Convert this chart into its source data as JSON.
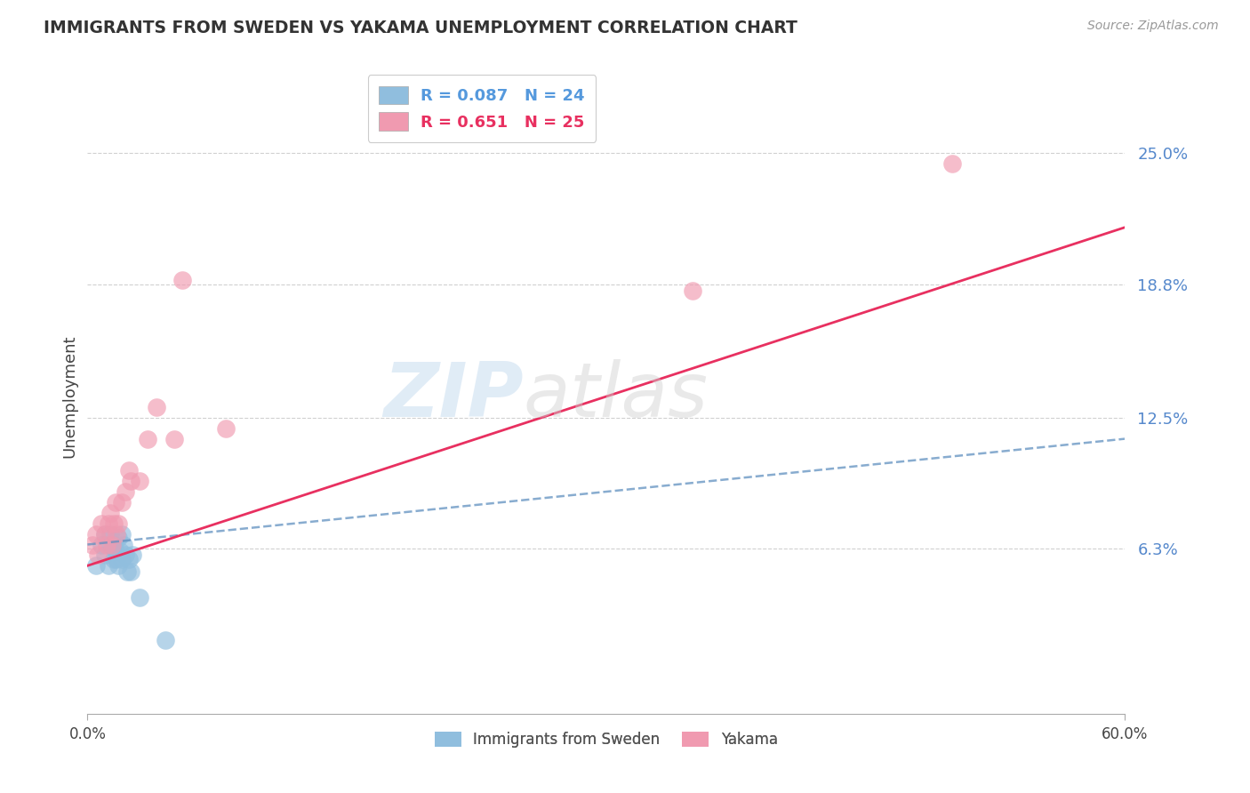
{
  "title": "IMMIGRANTS FROM SWEDEN VS YAKAMA UNEMPLOYMENT CORRELATION CHART",
  "source": "Source: ZipAtlas.com",
  "xlabel_blue": "Immigrants from Sweden",
  "xlabel_pink": "Yakama",
  "ylabel": "Unemployment",
  "watermark_zip": "ZIP",
  "watermark_atlas": "atlas",
  "legend_entries": [
    {
      "label_r": "R = 0.087",
      "label_n": "N = 24",
      "color": "#a8c8e8"
    },
    {
      "label_r": "R = 0.651",
      "label_n": "N = 25",
      "color": "#f4a0b8"
    }
  ],
  "xlim": [
    0.0,
    0.6
  ],
  "ylim": [
    -0.015,
    0.285
  ],
  "yticks": [
    0.063,
    0.125,
    0.188,
    0.25
  ],
  "ytick_labels": [
    "6.3%",
    "12.5%",
    "18.8%",
    "25.0%"
  ],
  "blue_color": "#90bede",
  "pink_color": "#f09ab0",
  "blue_line_color": "#6090c0",
  "pink_line_color": "#e83060",
  "grid_color": "#d0d0d0",
  "background_color": "#ffffff",
  "blue_scatter_x": [
    0.005,
    0.008,
    0.01,
    0.01,
    0.012,
    0.013,
    0.013,
    0.015,
    0.015,
    0.016,
    0.017,
    0.018,
    0.018,
    0.019,
    0.02,
    0.02,
    0.021,
    0.022,
    0.023,
    0.024,
    0.025,
    0.026,
    0.03,
    0.045
  ],
  "blue_scatter_y": [
    0.055,
    0.065,
    0.06,
    0.07,
    0.055,
    0.065,
    0.07,
    0.058,
    0.065,
    0.062,
    0.058,
    0.055,
    0.068,
    0.062,
    0.058,
    0.07,
    0.065,
    0.06,
    0.052,
    0.058,
    0.052,
    0.06,
    0.04,
    0.02
  ],
  "pink_scatter_x": [
    0.003,
    0.005,
    0.006,
    0.008,
    0.01,
    0.011,
    0.012,
    0.013,
    0.014,
    0.015,
    0.016,
    0.017,
    0.018,
    0.02,
    0.022,
    0.024,
    0.025,
    0.03,
    0.035,
    0.04,
    0.05,
    0.055,
    0.08,
    0.35,
    0.5
  ],
  "pink_scatter_y": [
    0.065,
    0.07,
    0.06,
    0.075,
    0.07,
    0.065,
    0.075,
    0.08,
    0.065,
    0.075,
    0.085,
    0.07,
    0.075,
    0.085,
    0.09,
    0.1,
    0.095,
    0.095,
    0.115,
    0.13,
    0.115,
    0.19,
    0.12,
    0.185,
    0.245
  ],
  "blue_line_x0": 0.0,
  "blue_line_x1": 0.6,
  "blue_line_y0": 0.065,
  "blue_line_y1": 0.115,
  "pink_line_x0": 0.0,
  "pink_line_x1": 0.6,
  "pink_line_y0": 0.055,
  "pink_line_y1": 0.215
}
